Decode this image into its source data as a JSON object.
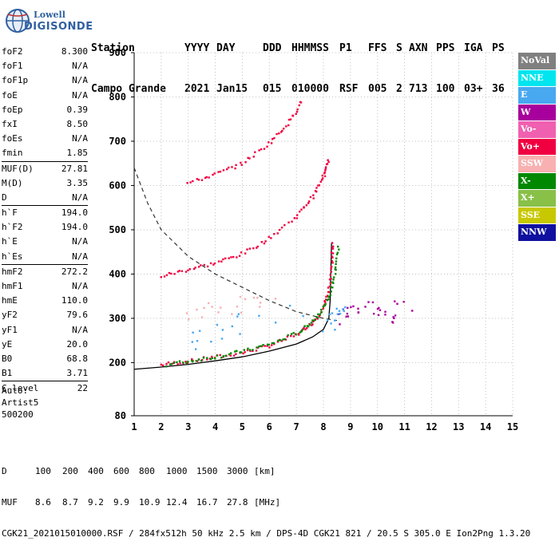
{
  "logo": {
    "line1": "Lowell",
    "line2": "DIGISONDE"
  },
  "header": {
    "labels": [
      "Station",
      "YYYY",
      "DAY",
      "DDD",
      "HHMMSS",
      "P1",
      "FFS",
      "S",
      "AXN",
      "PPS",
      "IGA",
      "PS"
    ],
    "values": [
      "Campo Grande",
      "2021",
      "Jan15",
      "015",
      "010000",
      "RSF",
      "005",
      "2",
      "713",
      "100",
      "03+",
      "36"
    ]
  },
  "params": [
    {
      "group": [
        {
          "name": "foF2",
          "value": "8.300"
        },
        {
          "name": "foF1",
          "value": "N/A"
        },
        {
          "name": "foF1p",
          "value": "N/A"
        },
        {
          "name": "foE",
          "value": "N/A"
        },
        {
          "name": "foEp",
          "value": "0.39"
        },
        {
          "name": "fxI",
          "value": "8.50"
        },
        {
          "name": "foEs",
          "value": "N/A"
        },
        {
          "name": "fmin",
          "value": "1.85"
        }
      ]
    },
    {
      "group": [
        {
          "name": "MUF(D)",
          "value": "27.81"
        },
        {
          "name": "M(D)",
          "value": "3.35"
        },
        {
          "name": "D",
          "value": "N/A"
        }
      ]
    },
    {
      "group": [
        {
          "name": "h`F",
          "value": "194.0"
        },
        {
          "name": "h`F2",
          "value": "194.0"
        },
        {
          "name": "h`E",
          "value": "N/A"
        },
        {
          "name": "h`Es",
          "value": "N/A"
        }
      ]
    },
    {
      "group": [
        {
          "name": "hmF2",
          "value": "272.2"
        },
        {
          "name": "hmF1",
          "value": "N/A"
        },
        {
          "name": "hmE",
          "value": "110.0"
        },
        {
          "name": "yF2",
          "value": "79.6"
        },
        {
          "name": "yF1",
          "value": "N/A"
        },
        {
          "name": "yE",
          "value": "20.0"
        },
        {
          "name": "B0",
          "value": "68.8"
        },
        {
          "name": "B1",
          "value": "3.71"
        }
      ]
    },
    {
      "group": [
        {
          "name": "C-level",
          "value": "22"
        }
      ]
    }
  ],
  "auto": {
    "line1": "Auto:",
    "line2": "Artist5",
    "line3": "500200"
  },
  "legend": [
    {
      "label": "NoVal",
      "color": "#808080"
    },
    {
      "label": "NNE",
      "color": "#00e5ee"
    },
    {
      "label": "E",
      "color": "#48a8f0"
    },
    {
      "label": "W",
      "color": "#a8009c"
    },
    {
      "label": "Vo-",
      "color": "#f060b0"
    },
    {
      "label": "Vo+",
      "color": "#f00040"
    },
    {
      "label": "SSW",
      "color": "#f8b0b0"
    },
    {
      "label": "X-",
      "color": "#008800"
    },
    {
      "label": "X+",
      "color": "#88c048"
    },
    {
      "label": "SSE",
      "color": "#c8c800"
    },
    {
      "label": "NNW",
      "color": "#1010a0"
    }
  ],
  "footer": {
    "d_label": "D",
    "d_values": [
      "100",
      "200",
      "400",
      "600",
      "800",
      "1000",
      "1500",
      "3000",
      "[km]"
    ],
    "muf_label": "MUF",
    "muf_values": [
      "8.6",
      "8.7",
      "9.2",
      "9.9",
      "10.9",
      "12.4",
      "16.7",
      "27.8",
      "[MHz]"
    ],
    "file_line": "CGK21_2021015010000.RSF / 284fx512h 50 kHz 2.5 km / DPS-4D CGK21 821 / 20.5 S 305.0 E Ion2Png 1.3.20"
  },
  "chart_data": {
    "type": "scatter",
    "xlim": [
      1,
      15
    ],
    "ylim": [
      80,
      900
    ],
    "x_ticks": [
      1,
      2,
      3,
      4,
      5,
      6,
      7,
      8,
      9,
      10,
      11,
      12,
      13,
      14,
      15
    ],
    "y_ticks": [
      80,
      200,
      300,
      400,
      500,
      600,
      700,
      800,
      900
    ],
    "grid": true,
    "legend_position": "right",
    "series": [
      {
        "name": "Vo+",
        "color": "#f00040",
        "points": [
          [
            2.0,
            195
          ],
          [
            3.0,
            203
          ],
          [
            4.0,
            212
          ],
          [
            5.0,
            222
          ],
          [
            6.0,
            238
          ],
          [
            7.0,
            262
          ],
          [
            7.6,
            290
          ],
          [
            8.0,
            320
          ],
          [
            8.2,
            360
          ],
          [
            8.3,
            420
          ],
          [
            8.35,
            470
          ]
        ]
      },
      {
        "name": "X-",
        "color": "#008800",
        "points": [
          [
            2.2,
            195
          ],
          [
            3.2,
            205
          ],
          [
            4.2,
            215
          ],
          [
            5.2,
            228
          ],
          [
            6.2,
            245
          ],
          [
            7.2,
            272
          ],
          [
            7.8,
            305
          ],
          [
            8.2,
            345
          ],
          [
            8.45,
            400
          ],
          [
            8.55,
            460
          ]
        ]
      },
      {
        "name": "Vo+",
        "color": "#f00040",
        "points": [
          [
            2.0,
            395
          ],
          [
            3.0,
            410
          ],
          [
            4.0,
            425
          ],
          [
            5.0,
            445
          ],
          [
            6.0,
            480
          ],
          [
            7.0,
            530
          ],
          [
            7.6,
            575
          ],
          [
            8.0,
            620
          ],
          [
            8.2,
            660
          ]
        ]
      },
      {
        "name": "Vo+",
        "color": "#f00040",
        "points": [
          [
            3.0,
            605
          ],
          [
            4.0,
            625
          ],
          [
            5.0,
            650
          ],
          [
            6.0,
            695
          ],
          [
            6.7,
            740
          ],
          [
            7.2,
            790
          ]
        ]
      },
      {
        "name": "W",
        "color": "#a8009c",
        "points": [
          [
            8.6,
            290
          ],
          [
            9.0,
            310
          ],
          [
            9.5,
            330
          ],
          [
            10.0,
            320
          ],
          [
            10.5,
            300
          ],
          [
            11.0,
            330
          ]
        ]
      },
      {
        "name": "E",
        "color": "#48a8f0",
        "points": [
          [
            8.2,
            290
          ],
          [
            8.5,
            310
          ],
          [
            8.8,
            330
          ],
          [
            5.0,
            290
          ],
          [
            4.0,
            260
          ],
          [
            3.0,
            250
          ]
        ]
      },
      {
        "name": "SSW",
        "color": "#f8b0b0",
        "points": [
          [
            3.0,
            310
          ],
          [
            4.0,
            320
          ],
          [
            5.0,
            330
          ],
          [
            6.0,
            340
          ]
        ]
      }
    ],
    "profile": [
      [
        1.0,
        185
      ],
      [
        2.0,
        190
      ],
      [
        3.0,
        196
      ],
      [
        4.0,
        204
      ],
      [
        5.0,
        213
      ],
      [
        6.0,
        226
      ],
      [
        7.0,
        242
      ],
      [
        7.6,
        258
      ],
      [
        8.0,
        275
      ],
      [
        8.2,
        300
      ],
      [
        8.25,
        340
      ],
      [
        8.28,
        420
      ],
      [
        8.3,
        470
      ]
    ],
    "muf_curve": [
      [
        1.0,
        640
      ],
      [
        1.5,
        560
      ],
      [
        2.0,
        500
      ],
      [
        3.0,
        440
      ],
      [
        4.0,
        400
      ],
      [
        5.0,
        370
      ],
      [
        6.0,
        340
      ],
      [
        7.0,
        315
      ],
      [
        8.0,
        300
      ],
      [
        8.5,
        295
      ]
    ]
  }
}
